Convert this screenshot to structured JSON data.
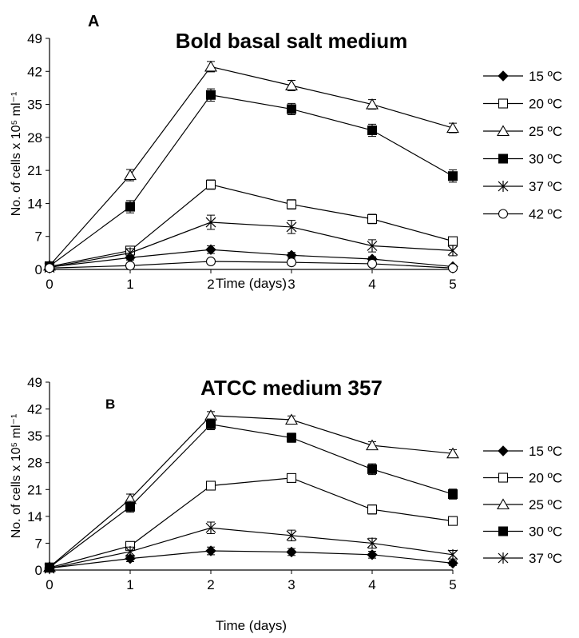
{
  "chart_data": [
    {
      "type": "line",
      "panel_label": "A",
      "title": "Bold basal salt medium",
      "xlabel": "Time (days)",
      "ylabel": "No. of cells x 10⁵ ml⁻¹",
      "x": [
        0,
        1,
        2,
        3,
        4,
        5
      ],
      "xlim": [
        0,
        5
      ],
      "ylim": [
        0,
        49
      ],
      "yticks": [
        0,
        7,
        14,
        21,
        28,
        35,
        42,
        49
      ],
      "grid": false,
      "legend_position": "right",
      "error_bars": true,
      "series": [
        {
          "name": "15 ºC",
          "marker": "diamond-filled",
          "values": [
            0.5,
            2.5,
            4.2,
            3.0,
            2.2,
            0.6
          ],
          "errors": [
            0.3,
            0.5,
            0.8,
            0.6,
            0.5,
            0.3
          ]
        },
        {
          "name": "20 ºC",
          "marker": "square-open",
          "values": [
            0.6,
            4.0,
            18.0,
            13.8,
            10.7,
            6.0
          ],
          "errors": [
            0.3,
            0.7,
            1.0,
            1.0,
            1.0,
            0.8
          ]
        },
        {
          "name": "25 ºC",
          "marker": "triangle-open",
          "values": [
            0.8,
            20.0,
            43.0,
            39.0,
            35.0,
            30.0
          ],
          "errors": [
            0.4,
            1.2,
            1.1,
            1.1,
            1.0,
            1.0
          ]
        },
        {
          "name": "30 ºC",
          "marker": "square-filled",
          "values": [
            0.7,
            13.3,
            37.0,
            34.0,
            29.5,
            19.8
          ],
          "errors": [
            0.3,
            1.3,
            1.3,
            1.2,
            1.3,
            1.3
          ]
        },
        {
          "name": "37 ºC",
          "marker": "asterisk",
          "values": [
            0.4,
            3.5,
            10.0,
            9.0,
            5.0,
            4.0
          ],
          "errors": [
            0.3,
            0.9,
            1.5,
            1.4,
            1.3,
            1.1
          ]
        },
        {
          "name": "42 ºC",
          "marker": "circle-open",
          "values": [
            0.3,
            0.8,
            1.7,
            1.5,
            1.2,
            0.3
          ],
          "errors": [
            0.2,
            0.3,
            0.5,
            0.5,
            0.4,
            0.2
          ]
        }
      ]
    },
    {
      "type": "line",
      "panel_label": "B",
      "title": "ATCC medium 357",
      "xlabel": "Time (days)",
      "ylabel": "No. of cells x 10⁵ ml⁻¹",
      "x": [
        0,
        1,
        2,
        3,
        4,
        5
      ],
      "xlim": [
        0,
        5
      ],
      "ylim": [
        0,
        49
      ],
      "yticks": [
        0,
        7,
        14,
        21,
        28,
        35,
        42,
        49
      ],
      "grid": false,
      "legend_position": "right",
      "error_bars": true,
      "series": [
        {
          "name": "15 ºC",
          "marker": "diamond-filled",
          "values": [
            0.5,
            3.0,
            5.0,
            4.7,
            4.0,
            1.8
          ],
          "errors": [
            0.3,
            0.8,
            1.0,
            0.9,
            0.9,
            0.6
          ]
        },
        {
          "name": "20 ºC",
          "marker": "square-open",
          "values": [
            0.6,
            6.3,
            22.0,
            24.0,
            15.8,
            12.8
          ],
          "errors": [
            0.3,
            0.9,
            1.0,
            1.1,
            1.2,
            1.1
          ]
        },
        {
          "name": "25 ºC",
          "marker": "triangle-open",
          "values": [
            0.8,
            18.5,
            40.3,
            39.2,
            32.5,
            30.4
          ],
          "errors": [
            0.4,
            1.3,
            1.0,
            1.0,
            1.0,
            1.0
          ]
        },
        {
          "name": "30 ºC",
          "marker": "square-filled",
          "values": [
            0.7,
            16.5,
            38.0,
            34.5,
            26.3,
            19.8
          ],
          "errors": [
            0.3,
            1.4,
            1.4,
            1.2,
            1.4,
            1.3
          ]
        },
        {
          "name": "37 ºC",
          "marker": "asterisk",
          "values": [
            0.4,
            4.8,
            11.0,
            9.0,
            7.0,
            4.0
          ],
          "errors": [
            0.3,
            1.2,
            1.5,
            1.4,
            1.3,
            1.1
          ]
        }
      ]
    }
  ]
}
